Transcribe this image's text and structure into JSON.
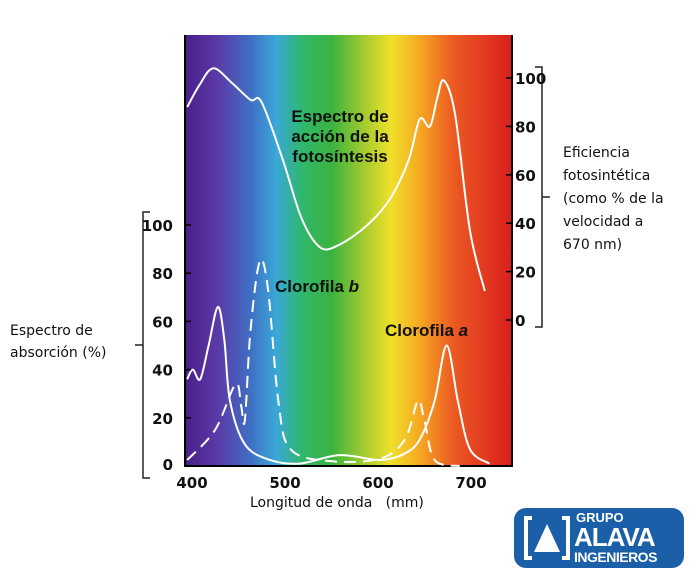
{
  "chart_data": {
    "type": "line",
    "xlabel": "Longitud de onda   (mm)",
    "x_ticks": [
      400,
      500,
      600,
      700
    ],
    "xlim": [
      395,
      745
    ],
    "left_axis": {
      "label": [
        "Espectro de",
        "absorción (%)"
      ],
      "ylim": [
        0,
        100
      ],
      "ticks": [
        0,
        20,
        40,
        60,
        80,
        100
      ]
    },
    "right_axis": {
      "label": [
        "Eficiencia",
        "fotosintética",
        "(como % de la",
        "velocidad a",
        "670 nm)"
      ],
      "ylim": [
        0,
        100
      ],
      "ticks": [
        0,
        20,
        40,
        60,
        80,
        100
      ]
    },
    "series": [
      {
        "name": "Espectro de acción de la fotosíntesis",
        "label_lines": [
          "Espectro de",
          "acción de la",
          "fotosíntesis"
        ],
        "axis": "right",
        "style": "solid",
        "x": [
          397,
          410,
          425,
          445,
          465,
          477,
          500,
          520,
          540,
          560,
          590,
          615,
          635,
          647,
          658,
          666,
          673,
          685,
          701,
          717
        ],
        "y": [
          88,
          97,
          104,
          98,
          91,
          90,
          66,
          42,
          30,
          31,
          39,
          50,
          66,
          83,
          80,
          92,
          99,
          85,
          37,
          12
        ]
      },
      {
        "name": "Clorofila a",
        "label_prefix": "Clorofila ",
        "label_italic": "a",
        "axis": "left",
        "style": "solid",
        "x": [
          397,
          403,
          411,
          420,
          430,
          437,
          443,
          459,
          486,
          518,
          561,
          604,
          630,
          647,
          663,
          676,
          688,
          701,
          722
        ],
        "y": [
          36,
          40,
          36,
          50,
          66,
          52,
          27,
          9,
          2.5,
          1,
          4.5,
          2.5,
          5,
          11,
          27,
          50,
          27,
          7,
          1
        ]
      },
      {
        "name": "Clorofila b",
        "label_prefix": "Clorofila ",
        "label_italic": "b",
        "axis": "left",
        "style": "dashed",
        "x": [
          397,
          427,
          449,
          455,
          459,
          465,
          475,
          484,
          495,
          508,
          551,
          604,
          631,
          645,
          652,
          663,
          690
        ],
        "y": [
          2.5,
          15,
          34,
          25,
          19,
          56,
          85,
          73,
          27,
          7,
          2,
          3,
          11,
          27,
          19,
          2.5,
          0
        ]
      }
    ]
  },
  "logo": {
    "line1": "GRUPO",
    "line2": "ALAVA",
    "line3": "INGENIEROS",
    "color": "#1a5fa8"
  }
}
